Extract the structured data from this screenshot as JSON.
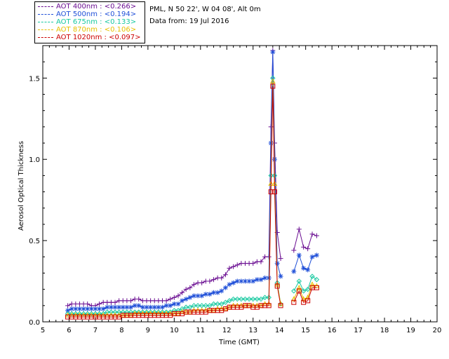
{
  "info": {
    "station": "PML, N 50 22', W 04 08', Alt 0m",
    "date": "Data from: 19 Jul 2016"
  },
  "legend": [
    {
      "label": "AOT  400nm : <0.266>",
      "color": "#6a0d91"
    },
    {
      "label": "AOT  500nm : <0.194>",
      "color": "#1f4fd8"
    },
    {
      "label": "AOT  675nm : <0.133>",
      "color": "#18c9a0"
    },
    {
      "label": "AOT  870nm : <0.106>",
      "color": "#e8c000"
    },
    {
      "label": "AOT 1020nm : <0.097>",
      "color": "#cc0000"
    }
  ],
  "chart_data": {
    "type": "line",
    "title": "",
    "xlabel": "Time (GMT)",
    "ylabel": "Aerosol Optical Thickness",
    "xlim": [
      5,
      20
    ],
    "ylim": [
      0,
      1.7
    ],
    "xticks": [
      5,
      6,
      7,
      8,
      9,
      10,
      11,
      12,
      13,
      14,
      15,
      16,
      17,
      18,
      19,
      20
    ],
    "yticks": [
      0.0,
      0.5,
      1.0,
      1.5
    ],
    "ytick_labels": [
      "0.0",
      "0.5",
      "1.0",
      "1.5"
    ],
    "grid": false,
    "series": [
      {
        "name": "AOT 400nm",
        "marker": "plus",
        "x": [
          5.95,
          6.1,
          6.25,
          6.4,
          6.55,
          6.7,
          6.85,
          7.0,
          7.15,
          7.3,
          7.45,
          7.6,
          7.75,
          7.9,
          8.05,
          8.2,
          8.35,
          8.5,
          8.65,
          8.8,
          8.95,
          9.1,
          9.25,
          9.4,
          9.55,
          9.7,
          9.85,
          10.0,
          10.15,
          10.3,
          10.45,
          10.6,
          10.75,
          10.9,
          11.05,
          11.2,
          11.35,
          11.5,
          11.65,
          11.8,
          11.95,
          12.1,
          12.25,
          12.4,
          12.55,
          12.7,
          12.85,
          13.0,
          13.15,
          13.3,
          13.45,
          13.6,
          13.68,
          13.75,
          13.82,
          13.92,
          14.05,
          14.55,
          14.75,
          14.92,
          15.08,
          15.25,
          15.42
        ],
        "y": [
          0.1,
          0.11,
          0.11,
          0.11,
          0.11,
          0.11,
          0.1,
          0.1,
          0.11,
          0.12,
          0.12,
          0.12,
          0.12,
          0.13,
          0.13,
          0.13,
          0.13,
          0.14,
          0.14,
          0.13,
          0.13,
          0.13,
          0.13,
          0.13,
          0.13,
          0.13,
          0.14,
          0.15,
          0.16,
          0.18,
          0.2,
          0.21,
          0.23,
          0.24,
          0.24,
          0.25,
          0.25,
          0.26,
          0.27,
          0.27,
          0.29,
          0.33,
          0.34,
          0.35,
          0.36,
          0.36,
          0.36,
          0.36,
          0.37,
          0.37,
          0.4,
          0.4,
          1.2,
          1.67,
          1.1,
          0.55,
          0.39,
          0.44,
          0.57,
          0.46,
          0.45,
          0.54,
          0.53
        ]
      },
      {
        "name": "AOT 500nm",
        "marker": "asterisk",
        "x": [
          5.95,
          6.1,
          6.25,
          6.4,
          6.55,
          6.7,
          6.85,
          7.0,
          7.15,
          7.3,
          7.45,
          7.6,
          7.75,
          7.9,
          8.05,
          8.2,
          8.35,
          8.5,
          8.65,
          8.8,
          8.95,
          9.1,
          9.25,
          9.4,
          9.55,
          9.7,
          9.85,
          10.0,
          10.15,
          10.3,
          10.45,
          10.6,
          10.75,
          10.9,
          11.05,
          11.2,
          11.35,
          11.5,
          11.65,
          11.8,
          11.95,
          12.1,
          12.25,
          12.4,
          12.55,
          12.7,
          12.85,
          13.0,
          13.15,
          13.3,
          13.45,
          13.6,
          13.68,
          13.75,
          13.82,
          13.92,
          14.05,
          14.55,
          14.75,
          14.92,
          15.08,
          15.25,
          15.42
        ],
        "y": [
          0.07,
          0.08,
          0.08,
          0.08,
          0.08,
          0.08,
          0.08,
          0.08,
          0.08,
          0.08,
          0.09,
          0.09,
          0.09,
          0.09,
          0.09,
          0.09,
          0.09,
          0.1,
          0.1,
          0.09,
          0.09,
          0.09,
          0.09,
          0.09,
          0.09,
          0.1,
          0.1,
          0.11,
          0.11,
          0.13,
          0.14,
          0.15,
          0.16,
          0.16,
          0.16,
          0.17,
          0.17,
          0.18,
          0.18,
          0.19,
          0.21,
          0.23,
          0.24,
          0.25,
          0.25,
          0.25,
          0.25,
          0.25,
          0.26,
          0.26,
          0.27,
          0.27,
          1.1,
          1.66,
          1.0,
          0.36,
          0.28,
          0.31,
          0.41,
          0.33,
          0.32,
          0.4,
          0.41
        ]
      },
      {
        "name": "AOT 675nm",
        "marker": "diamond",
        "x": [
          5.95,
          6.1,
          6.25,
          6.4,
          6.55,
          6.7,
          6.85,
          7.0,
          7.15,
          7.3,
          7.45,
          7.6,
          7.75,
          7.9,
          8.05,
          8.2,
          8.35,
          8.5,
          8.65,
          8.8,
          8.95,
          9.1,
          9.25,
          9.4,
          9.55,
          9.7,
          9.85,
          10.0,
          10.15,
          10.3,
          10.45,
          10.6,
          10.75,
          10.9,
          11.05,
          11.2,
          11.35,
          11.5,
          11.65,
          11.8,
          11.95,
          12.1,
          12.25,
          12.4,
          12.55,
          12.7,
          12.85,
          13.0,
          13.15,
          13.3,
          13.45,
          13.6,
          13.68,
          13.75,
          13.82,
          13.92,
          14.05,
          14.55,
          14.75,
          14.92,
          15.08,
          15.25,
          15.42
        ],
        "y": [
          0.05,
          0.05,
          0.05,
          0.05,
          0.05,
          0.05,
          0.05,
          0.05,
          0.05,
          0.05,
          0.06,
          0.06,
          0.06,
          0.06,
          0.06,
          0.06,
          0.06,
          0.06,
          0.06,
          0.06,
          0.06,
          0.06,
          0.06,
          0.06,
          0.06,
          0.06,
          0.06,
          0.07,
          0.07,
          0.08,
          0.09,
          0.09,
          0.1,
          0.1,
          0.1,
          0.1,
          0.1,
          0.11,
          0.11,
          0.11,
          0.12,
          0.13,
          0.14,
          0.14,
          0.14,
          0.14,
          0.14,
          0.14,
          0.14,
          0.14,
          0.15,
          0.15,
          0.9,
          1.5,
          0.9,
          0.24,
          0.11,
          0.19,
          0.25,
          0.19,
          0.2,
          0.28,
          0.26
        ]
      },
      {
        "name": "AOT 870nm",
        "marker": "triangle",
        "x": [
          5.95,
          6.1,
          6.25,
          6.4,
          6.55,
          6.7,
          6.85,
          7.0,
          7.15,
          7.3,
          7.45,
          7.6,
          7.75,
          7.9,
          8.05,
          8.2,
          8.35,
          8.5,
          8.65,
          8.8,
          8.95,
          9.1,
          9.25,
          9.4,
          9.55,
          9.7,
          9.85,
          10.0,
          10.15,
          10.3,
          10.45,
          10.6,
          10.75,
          10.9,
          11.05,
          11.2,
          11.35,
          11.5,
          11.65,
          11.8,
          11.95,
          12.1,
          12.25,
          12.4,
          12.55,
          12.7,
          12.85,
          13.0,
          13.15,
          13.3,
          13.45,
          13.6,
          13.68,
          13.75,
          13.82,
          13.92,
          14.05,
          14.55,
          14.75,
          14.92,
          15.08,
          15.25,
          15.42
        ],
        "y": [
          0.04,
          0.04,
          0.04,
          0.04,
          0.04,
          0.04,
          0.04,
          0.04,
          0.04,
          0.04,
          0.04,
          0.04,
          0.04,
          0.04,
          0.04,
          0.04,
          0.04,
          0.05,
          0.05,
          0.05,
          0.05,
          0.05,
          0.05,
          0.05,
          0.05,
          0.05,
          0.05,
          0.05,
          0.05,
          0.06,
          0.06,
          0.06,
          0.07,
          0.07,
          0.07,
          0.07,
          0.07,
          0.07,
          0.08,
          0.08,
          0.08,
          0.09,
          0.1,
          0.1,
          0.1,
          0.1,
          0.1,
          0.1,
          0.1,
          0.1,
          0.11,
          0.11,
          0.85,
          1.48,
          0.85,
          0.23,
          0.11,
          0.14,
          0.21,
          0.14,
          0.15,
          0.23,
          0.22
        ]
      },
      {
        "name": "AOT 1020nm",
        "marker": "square",
        "x": [
          5.95,
          6.1,
          6.25,
          6.4,
          6.55,
          6.7,
          6.85,
          7.0,
          7.15,
          7.3,
          7.45,
          7.6,
          7.75,
          7.9,
          8.05,
          8.2,
          8.35,
          8.5,
          8.65,
          8.8,
          8.95,
          9.1,
          9.25,
          9.4,
          9.55,
          9.7,
          9.85,
          10.0,
          10.15,
          10.3,
          10.45,
          10.6,
          10.75,
          10.9,
          11.05,
          11.2,
          11.35,
          11.5,
          11.65,
          11.8,
          11.95,
          12.1,
          12.25,
          12.4,
          12.55,
          12.7,
          12.85,
          13.0,
          13.15,
          13.3,
          13.45,
          13.6,
          13.68,
          13.75,
          13.82,
          13.92,
          14.05,
          14.55,
          14.75,
          14.92,
          15.08,
          15.25,
          15.42
        ],
        "y": [
          0.03,
          0.03,
          0.03,
          0.03,
          0.03,
          0.03,
          0.03,
          0.03,
          0.03,
          0.03,
          0.03,
          0.03,
          0.03,
          0.03,
          0.04,
          0.04,
          0.04,
          0.04,
          0.04,
          0.04,
          0.04,
          0.04,
          0.04,
          0.04,
          0.04,
          0.04,
          0.04,
          0.05,
          0.05,
          0.05,
          0.06,
          0.06,
          0.06,
          0.06,
          0.06,
          0.06,
          0.07,
          0.07,
          0.07,
          0.07,
          0.08,
          0.09,
          0.09,
          0.09,
          0.09,
          0.1,
          0.1,
          0.09,
          0.09,
          0.1,
          0.1,
          0.1,
          0.8,
          1.45,
          0.8,
          0.22,
          0.1,
          0.12,
          0.19,
          0.12,
          0.13,
          0.21,
          0.21
        ]
      }
    ]
  }
}
